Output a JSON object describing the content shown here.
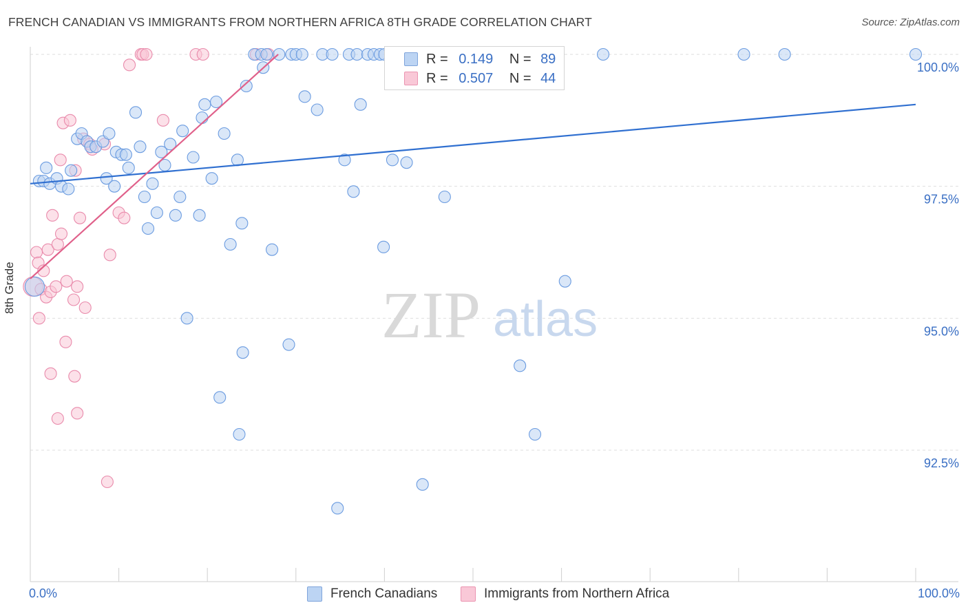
{
  "title": "FRENCH CANADIAN VS IMMIGRANTS FROM NORTHERN AFRICA 8TH GRADE CORRELATION CHART",
  "source": "Source: ZipAtlas.com",
  "legend": {
    "r_label": "R =",
    "n_label": "N =",
    "blue": {
      "r": "0.149",
      "n": "89"
    },
    "pink": {
      "r": "0.507",
      "n": "44"
    }
  },
  "bottom_legend": {
    "blue": "French Canadians",
    "pink": "Immigrants from Northern Africa"
  },
  "colors": {
    "blue": "#6a9be0",
    "blue_fill": "#bcd4f3",
    "blue_line": "#2f6fd0",
    "pink": "#e98aab",
    "pink_fill": "#f9c8d7",
    "pink_line": "#e0608a",
    "grid": "#dedede",
    "tick_label": "#3a6fc4"
  },
  "chart_data": {
    "type": "scatter",
    "title": "FRENCH CANADIAN VS IMMIGRANTS FROM NORTHERN AFRICA 8TH GRADE CORRELATION CHART",
    "xlabel": "",
    "ylabel": "8th Grade",
    "xlim": [
      0,
      100
    ],
    "ylim": [
      90.0,
      100.2
    ],
    "x_tick_labels": [
      "0.0%",
      "100.0%"
    ],
    "y_ticks": [
      92.5,
      95.0,
      97.5,
      100.0
    ],
    "y_tick_labels": [
      "92.5%",
      "95.0%",
      "97.5%",
      "100.0%"
    ],
    "watermark": {
      "zip": "ZIP",
      "atlas": "atlas"
    },
    "series": [
      {
        "name": "French Canadians",
        "color": "blue",
        "trend": {
          "x": [
            0,
            100
          ],
          "y": [
            97.55,
            99.05
          ]
        },
        "points": [
          [
            0.5,
            95.6
          ],
          [
            1,
            97.6
          ],
          [
            1.5,
            97.6
          ],
          [
            1.8,
            97.85
          ],
          [
            2.2,
            97.55
          ],
          [
            3,
            97.65
          ],
          [
            3.5,
            97.5
          ],
          [
            4.3,
            97.45
          ],
          [
            4.6,
            97.8
          ],
          [
            5.3,
            98.4
          ],
          [
            5.8,
            98.5
          ],
          [
            6.4,
            98.35
          ],
          [
            6.8,
            98.25
          ],
          [
            7.4,
            98.25
          ],
          [
            8.2,
            98.35
          ],
          [
            8.6,
            97.65
          ],
          [
            8.9,
            98.5
          ],
          [
            9.5,
            97.5
          ],
          [
            9.7,
            98.15
          ],
          [
            10.3,
            98.1
          ],
          [
            10.8,
            98.1
          ],
          [
            11.1,
            97.85
          ],
          [
            11.9,
            98.9
          ],
          [
            12.4,
            98.25
          ],
          [
            12.9,
            97.3
          ],
          [
            13.3,
            96.7
          ],
          [
            13.8,
            97.55
          ],
          [
            14.3,
            97.0
          ],
          [
            14.8,
            98.15
          ],
          [
            15.2,
            97.9
          ],
          [
            15.8,
            98.3
          ],
          [
            16.4,
            96.95
          ],
          [
            16.9,
            97.3
          ],
          [
            17.2,
            98.55
          ],
          [
            17.7,
            95.0
          ],
          [
            18.4,
            98.05
          ],
          [
            19.1,
            96.95
          ],
          [
            19.4,
            98.8
          ],
          [
            19.7,
            99.05
          ],
          [
            20.5,
            97.65
          ],
          [
            21.0,
            99.1
          ],
          [
            21.4,
            93.5
          ],
          [
            21.9,
            98.5
          ],
          [
            22.6,
            96.4
          ],
          [
            23.4,
            98.0
          ],
          [
            23.6,
            92.8
          ],
          [
            23.9,
            96.8
          ],
          [
            24.0,
            94.35
          ],
          [
            24.4,
            99.4
          ],
          [
            25.3,
            100.0
          ],
          [
            26.1,
            100.0
          ],
          [
            26.3,
            99.75
          ],
          [
            26.7,
            100.0
          ],
          [
            27.3,
            96.3
          ],
          [
            28.1,
            100.0
          ],
          [
            29.2,
            94.5
          ],
          [
            29.5,
            100.0
          ],
          [
            30.0,
            100.0
          ],
          [
            30.7,
            100.0
          ],
          [
            31.0,
            99.2
          ],
          [
            32.4,
            98.95
          ],
          [
            33.0,
            100.0
          ],
          [
            34.1,
            100.0
          ],
          [
            34.7,
            91.4
          ],
          [
            35.5,
            98.0
          ],
          [
            36.0,
            100.0
          ],
          [
            36.5,
            97.4
          ],
          [
            36.9,
            100.0
          ],
          [
            37.3,
            99.05
          ],
          [
            38.1,
            100.0
          ],
          [
            38.8,
            100.0
          ],
          [
            39.5,
            100.0
          ],
          [
            39.9,
            96.35
          ],
          [
            40.0,
            100.0
          ],
          [
            40.9,
            98.0
          ],
          [
            42.5,
            97.95
          ],
          [
            44.3,
            91.85
          ],
          [
            46.8,
            97.3
          ],
          [
            47.6,
            100.0
          ],
          [
            50.4,
            100.0
          ],
          [
            53.6,
            100.0
          ],
          [
            55.3,
            94.1
          ],
          [
            57.0,
            92.8
          ],
          [
            57.7,
            100.0
          ],
          [
            60.4,
            95.7
          ],
          [
            64.7,
            100.0
          ],
          [
            80.6,
            100.0
          ],
          [
            85.2,
            100.0
          ],
          [
            100.0,
            100.0
          ]
        ]
      },
      {
        "name": "Immigrants from Northern Africa",
        "color": "pink",
        "trend": {
          "x": [
            0,
            28
          ],
          "y": [
            95.75,
            100.0
          ]
        },
        "points": [
          [
            0.3,
            95.6
          ],
          [
            0.7,
            96.25
          ],
          [
            0.9,
            96.05
          ],
          [
            1.2,
            95.55
          ],
          [
            1.5,
            95.9
          ],
          [
            1.8,
            95.4
          ],
          [
            2.0,
            96.3
          ],
          [
            2.3,
            95.5
          ],
          [
            2.5,
            96.95
          ],
          [
            2.9,
            95.6
          ],
          [
            3.1,
            96.4
          ],
          [
            3.4,
            98.0
          ],
          [
            3.5,
            96.6
          ],
          [
            3.7,
            98.7
          ],
          [
            4.1,
            95.7
          ],
          [
            4.5,
            98.75
          ],
          [
            4.9,
            95.35
          ],
          [
            5.1,
            97.8
          ],
          [
            5.3,
            95.6
          ],
          [
            5.6,
            96.9
          ],
          [
            6.0,
            98.4
          ],
          [
            6.2,
            95.2
          ],
          [
            6.7,
            98.3
          ],
          [
            7.0,
            98.2
          ],
          [
            8.4,
            98.3
          ],
          [
            9.0,
            96.2
          ],
          [
            10.0,
            97.0
          ],
          [
            10.6,
            96.9
          ],
          [
            11.2,
            99.8
          ],
          [
            12.5,
            100.0
          ],
          [
            12.7,
            100.0
          ],
          [
            13.1,
            100.0
          ],
          [
            15.0,
            98.75
          ],
          [
            18.7,
            100.0
          ],
          [
            19.5,
            100.0
          ],
          [
            25.5,
            100.0
          ],
          [
            26.9,
            100.0
          ],
          [
            1.0,
            95.0
          ],
          [
            2.3,
            93.95
          ],
          [
            4.0,
            94.55
          ],
          [
            5.0,
            93.9
          ],
          [
            3.1,
            93.1
          ],
          [
            5.3,
            93.2
          ],
          [
            8.7,
            91.9
          ]
        ]
      }
    ]
  }
}
